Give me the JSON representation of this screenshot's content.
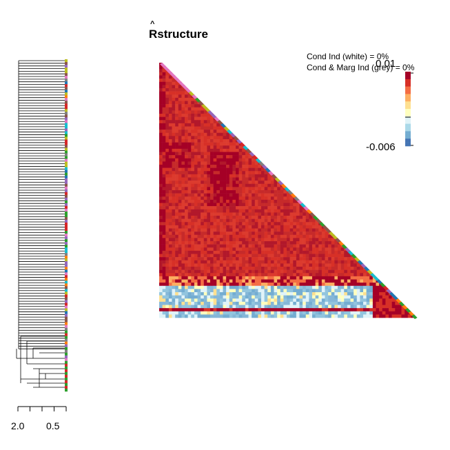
{
  "chart_data": {
    "type": "heatmap",
    "title": "structure",
    "title_hat_letter": "R",
    "annotations": [
      "Cond Ind (white) = 0%",
      "Cond & Marg Ind (grey) = 0%"
    ],
    "colorscale": {
      "max_label": "0.01",
      "min_label": "-0.006",
      "colors": [
        "#a50026",
        "#d73027",
        "#f46d43",
        "#fdae61",
        "#fee090",
        "#ffffbf",
        "#e0f3f8",
        "#abd9e9",
        "#74add1",
        "#4575b4"
      ]
    },
    "dendrogram": {
      "axis_ticks": [
        "2.0",
        "0.5"
      ]
    },
    "layout_note": "lower-triangular correlation heatmap with row dendrogram",
    "blocks": [
      {
        "from": 0.0,
        "to": 0.84,
        "value": 0.008
      },
      {
        "from": 0.84,
        "to": 0.87,
        "value": 0.009
      },
      {
        "from": 0.87,
        "to": 1.0,
        "value": -0.004
      }
    ]
  }
}
